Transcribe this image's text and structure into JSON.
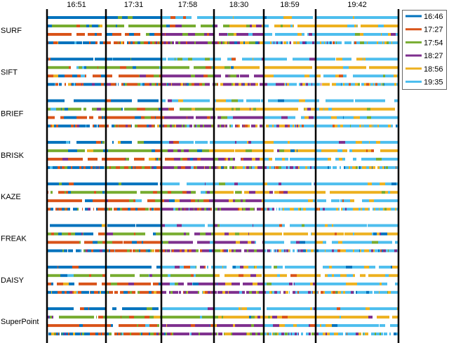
{
  "chart_data": {
    "type": "heatmap",
    "title": "",
    "top_labels": [
      "16:51",
      "17:31",
      "17:58",
      "18:30",
      "18:59",
      "19:42"
    ],
    "row_labels": [
      "SURF",
      "SIFT",
      "BRIEF",
      "BRISK",
      "KAZE",
      "FREAK",
      "DAISY",
      "SuperPoint"
    ],
    "strips_per_row": 4,
    "legend": {
      "placement": "top-right",
      "entries": [
        {
          "label": "16:46",
          "color": "#0072BD"
        },
        {
          "label": "17:27",
          "color": "#D95319"
        },
        {
          "label": "17:54",
          "color": "#77AC30"
        },
        {
          "label": "18:27",
          "color": "#7E2F8E"
        },
        {
          "label": "18:56",
          "color": "#EDB120"
        },
        {
          "label": "19:35",
          "color": "#4DBEEE"
        }
      ]
    },
    "dominant_match_by_strip": [
      [
        0,
        0,
        5,
        5,
        5,
        5
      ],
      [
        2,
        2,
        2,
        4,
        4,
        4
      ],
      [
        1,
        1,
        3,
        3,
        5,
        5
      ],
      [
        0,
        1,
        3,
        3,
        5,
        5
      ]
    ],
    "mixing_by_strip": [
      0.15,
      0.3,
      0.35,
      0.6
    ]
  }
}
